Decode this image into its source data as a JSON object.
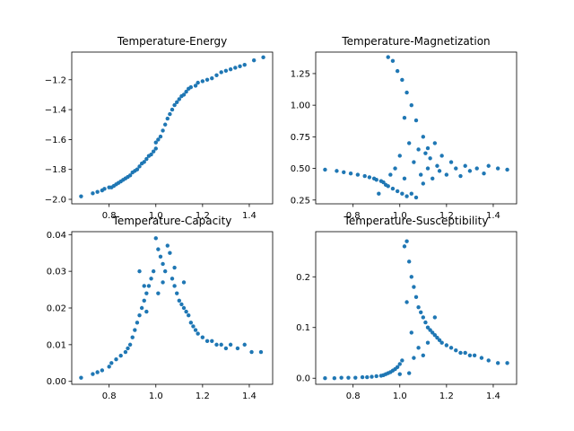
{
  "chart_data": [
    {
      "type": "scatter",
      "title": "Temperature-Energy",
      "xlim": [
        0.64,
        1.5
      ],
      "ylim": [
        -2.03,
        -1.015
      ],
      "xticks": [
        0.8,
        1.0,
        1.2,
        1.4
      ],
      "xtick_labels": [
        "0.8",
        "1.0",
        "1.2",
        "1.4"
      ],
      "yticks": [
        -2.0,
        -1.8,
        -1.6,
        -1.4,
        -1.2
      ],
      "ytick_labels": [
        "−2.0",
        "−1.8",
        "−1.6",
        "−1.4",
        "−1.2"
      ],
      "color": "#1f77b4",
      "points": [
        [
          0.68,
          -1.98
        ],
        [
          0.73,
          -1.96
        ],
        [
          0.75,
          -1.95
        ],
        [
          0.77,
          -1.94
        ],
        [
          0.78,
          -1.93
        ],
        [
          0.8,
          -1.92
        ],
        [
          0.81,
          -1.92
        ],
        [
          0.82,
          -1.91
        ],
        [
          0.83,
          -1.9
        ],
        [
          0.84,
          -1.89
        ],
        [
          0.85,
          -1.88
        ],
        [
          0.86,
          -1.87
        ],
        [
          0.87,
          -1.86
        ],
        [
          0.88,
          -1.85
        ],
        [
          0.89,
          -1.84
        ],
        [
          0.9,
          -1.82
        ],
        [
          0.91,
          -1.81
        ],
        [
          0.92,
          -1.8
        ],
        [
          0.93,
          -1.78
        ],
        [
          0.94,
          -1.76
        ],
        [
          0.95,
          -1.75
        ],
        [
          0.96,
          -1.73
        ],
        [
          0.97,
          -1.71
        ],
        [
          0.98,
          -1.7
        ],
        [
          0.99,
          -1.68
        ],
        [
          1.0,
          -1.62
        ],
        [
          1.0,
          -1.66
        ],
        [
          1.01,
          -1.6
        ],
        [
          1.02,
          -1.58
        ],
        [
          1.03,
          -1.54
        ],
        [
          1.04,
          -1.5
        ],
        [
          1.05,
          -1.46
        ],
        [
          1.06,
          -1.43
        ],
        [
          1.07,
          -1.4
        ],
        [
          1.08,
          -1.37
        ],
        [
          1.09,
          -1.35
        ],
        [
          1.1,
          -1.33
        ],
        [
          1.11,
          -1.31
        ],
        [
          1.12,
          -1.3
        ],
        [
          1.13,
          -1.28
        ],
        [
          1.14,
          -1.26
        ],
        [
          1.15,
          -1.25
        ],
        [
          1.17,
          -1.24
        ],
        [
          1.18,
          -1.22
        ],
        [
          1.2,
          -1.21
        ],
        [
          1.22,
          -1.2
        ],
        [
          1.24,
          -1.19
        ],
        [
          1.26,
          -1.17
        ],
        [
          1.28,
          -1.15
        ],
        [
          1.3,
          -1.14
        ],
        [
          1.32,
          -1.13
        ],
        [
          1.34,
          -1.12
        ],
        [
          1.36,
          -1.11
        ],
        [
          1.38,
          -1.1
        ],
        [
          1.42,
          -1.07
        ],
        [
          1.46,
          -1.05
        ]
      ]
    },
    {
      "type": "scatter",
      "title": "Temperature-Magnetization",
      "xlim": [
        0.64,
        1.5
      ],
      "ylim": [
        0.22,
        1.42
      ],
      "xticks": [
        0.8,
        1.0,
        1.2,
        1.4
      ],
      "xtick_labels": [
        "0.8",
        "1.0",
        "1.2",
        "1.4"
      ],
      "yticks": [
        0.25,
        0.5,
        0.75,
        1.0,
        1.25
      ],
      "ytick_labels": [
        "0.25",
        "0.50",
        "0.75",
        "1.00",
        "1.25"
      ],
      "color": "#1f77b4",
      "points": [
        [
          0.68,
          0.49
        ],
        [
          0.73,
          0.48
        ],
        [
          0.76,
          0.47
        ],
        [
          0.79,
          0.46
        ],
        [
          0.82,
          0.45
        ],
        [
          0.85,
          0.44
        ],
        [
          0.87,
          0.43
        ],
        [
          0.89,
          0.42
        ],
        [
          0.9,
          0.41
        ],
        [
          0.92,
          0.4
        ],
        [
          0.93,
          0.39
        ],
        [
          0.94,
          0.37
        ],
        [
          0.95,
          0.36
        ],
        [
          0.97,
          0.34
        ],
        [
          0.99,
          0.32
        ],
        [
          1.01,
          0.3
        ],
        [
          1.03,
          0.28
        ],
        [
          1.05,
          0.3
        ],
        [
          1.07,
          0.27
        ],
        [
          0.95,
          1.38
        ],
        [
          0.97,
          1.35
        ],
        [
          0.99,
          1.27
        ],
        [
          1.01,
          1.2
        ],
        [
          1.03,
          1.1
        ],
        [
          1.05,
          1.0
        ],
        [
          1.07,
          0.88
        ],
        [
          0.98,
          0.5
        ],
        [
          1.0,
          0.6
        ],
        [
          1.02,
          0.9
        ],
        [
          1.04,
          0.7
        ],
        [
          1.06,
          0.55
        ],
        [
          1.08,
          0.65
        ],
        [
          1.09,
          0.45
        ],
        [
          1.1,
          0.75
        ],
        [
          1.11,
          0.62
        ],
        [
          1.12,
          0.5
        ],
        [
          1.13,
          0.58
        ],
        [
          1.14,
          0.42
        ],
        [
          1.15,
          0.7
        ],
        [
          1.16,
          0.52
        ],
        [
          1.17,
          0.48
        ],
        [
          1.18,
          0.6
        ],
        [
          1.2,
          0.45
        ],
        [
          1.22,
          0.55
        ],
        [
          1.24,
          0.5
        ],
        [
          1.26,
          0.44
        ],
        [
          1.28,
          0.52
        ],
        [
          1.3,
          0.48
        ],
        [
          1.33,
          0.5
        ],
        [
          1.36,
          0.46
        ],
        [
          1.38,
          0.52
        ],
        [
          1.42,
          0.5
        ],
        [
          1.46,
          0.49
        ],
        [
          1.1,
          0.38
        ],
        [
          1.02,
          0.42
        ],
        [
          1.12,
          0.66
        ],
        [
          0.91,
          0.3
        ],
        [
          0.96,
          0.45
        ]
      ]
    },
    {
      "type": "scatter",
      "title": "Temperature-Capacity",
      "xlim": [
        0.64,
        1.5
      ],
      "ylim": [
        -0.0008,
        0.0408
      ],
      "xticks": [
        0.8,
        1.0,
        1.2,
        1.4
      ],
      "xtick_labels": [
        "0.8",
        "1.0",
        "1.2",
        "1.4"
      ],
      "yticks": [
        0.0,
        0.01,
        0.02,
        0.03,
        0.04
      ],
      "ytick_labels": [
        "0.00",
        "0.01",
        "0.02",
        "0.03",
        "0.04"
      ],
      "color": "#1f77b4",
      "points": [
        [
          0.68,
          0.001
        ],
        [
          0.73,
          0.002
        ],
        [
          0.75,
          0.0025
        ],
        [
          0.77,
          0.003
        ],
        [
          0.8,
          0.004
        ],
        [
          0.81,
          0.005
        ],
        [
          0.83,
          0.006
        ],
        [
          0.85,
          0.007
        ],
        [
          0.87,
          0.008
        ],
        [
          0.88,
          0.009
        ],
        [
          0.89,
          0.01
        ],
        [
          0.9,
          0.012
        ],
        [
          0.91,
          0.014
        ],
        [
          0.92,
          0.016
        ],
        [
          0.93,
          0.018
        ],
        [
          0.94,
          0.02
        ],
        [
          0.95,
          0.022
        ],
        [
          0.96,
          0.024
        ],
        [
          0.97,
          0.026
        ],
        [
          0.98,
          0.028
        ],
        [
          0.99,
          0.03
        ],
        [
          1.0,
          0.039
        ],
        [
          1.01,
          0.036
        ],
        [
          1.02,
          0.034
        ],
        [
          1.03,
          0.032
        ],
        [
          1.04,
          0.03
        ],
        [
          1.05,
          0.037
        ],
        [
          1.06,
          0.035
        ],
        [
          1.07,
          0.028
        ],
        [
          1.08,
          0.026
        ],
        [
          1.09,
          0.024
        ],
        [
          1.1,
          0.022
        ],
        [
          1.11,
          0.021
        ],
        [
          1.12,
          0.02
        ],
        [
          1.13,
          0.019
        ],
        [
          1.14,
          0.018
        ],
        [
          1.15,
          0.016
        ],
        [
          1.16,
          0.015
        ],
        [
          1.17,
          0.014
        ],
        [
          1.18,
          0.013
        ],
        [
          1.2,
          0.012
        ],
        [
          1.22,
          0.011
        ],
        [
          1.24,
          0.011
        ],
        [
          1.26,
          0.01
        ],
        [
          1.28,
          0.01
        ],
        [
          1.3,
          0.009
        ],
        [
          1.32,
          0.01
        ],
        [
          1.35,
          0.009
        ],
        [
          1.38,
          0.01
        ],
        [
          1.41,
          0.008
        ],
        [
          1.45,
          0.008
        ],
        [
          0.93,
          0.03
        ],
        [
          0.96,
          0.019
        ],
        [
          1.03,
          0.027
        ],
        [
          1.08,
          0.031
        ],
        [
          1.01,
          0.024
        ],
        [
          1.12,
          0.027
        ],
        [
          0.95,
          0.026
        ]
      ]
    },
    {
      "type": "scatter",
      "title": "Temperature-Susceptibility",
      "xlim": [
        0.64,
        1.5
      ],
      "ylim": [
        -0.012,
        0.289
      ],
      "xticks": [
        0.8,
        1.0,
        1.2,
        1.4
      ],
      "xtick_labels": [
        "0.8",
        "1.0",
        "1.2",
        "1.4"
      ],
      "yticks": [
        0.0,
        0.1,
        0.2
      ],
      "ytick_labels": [
        "0.0",
        "0.1",
        "0.2"
      ],
      "color": "#1f77b4",
      "points": [
        [
          0.68,
          0.0
        ],
        [
          0.72,
          0.0
        ],
        [
          0.75,
          0.001
        ],
        [
          0.78,
          0.001
        ],
        [
          0.81,
          0.001
        ],
        [
          0.84,
          0.002
        ],
        [
          0.86,
          0.002
        ],
        [
          0.88,
          0.003
        ],
        [
          0.9,
          0.004
        ],
        [
          0.92,
          0.005
        ],
        [
          0.93,
          0.006
        ],
        [
          0.94,
          0.008
        ],
        [
          0.95,
          0.01
        ],
        [
          0.96,
          0.012
        ],
        [
          0.97,
          0.015
        ],
        [
          0.98,
          0.018
        ],
        [
          0.99,
          0.022
        ],
        [
          1.0,
          0.028
        ],
        [
          1.01,
          0.035
        ],
        [
          1.02,
          0.26
        ],
        [
          1.03,
          0.27
        ],
        [
          1.04,
          0.23
        ],
        [
          1.05,
          0.2
        ],
        [
          1.06,
          0.18
        ],
        [
          1.07,
          0.16
        ],
        [
          1.08,
          0.14
        ],
        [
          1.09,
          0.13
        ],
        [
          1.1,
          0.12
        ],
        [
          1.11,
          0.11
        ],
        [
          1.12,
          0.1
        ],
        [
          1.13,
          0.095
        ],
        [
          1.14,
          0.09
        ],
        [
          1.15,
          0.085
        ],
        [
          1.16,
          0.08
        ],
        [
          1.17,
          0.075
        ],
        [
          1.18,
          0.07
        ],
        [
          1.2,
          0.065
        ],
        [
          1.22,
          0.06
        ],
        [
          1.24,
          0.055
        ],
        [
          1.26,
          0.05
        ],
        [
          1.28,
          0.05
        ],
        [
          1.3,
          0.045
        ],
        [
          1.32,
          0.045
        ],
        [
          1.35,
          0.04
        ],
        [
          1.38,
          0.035
        ],
        [
          1.42,
          0.03
        ],
        [
          1.46,
          0.03
        ],
        [
          1.05,
          0.09
        ],
        [
          1.08,
          0.06
        ],
        [
          1.1,
          0.045
        ],
        [
          1.03,
          0.15
        ],
        [
          1.06,
          0.04
        ],
        [
          1.12,
          0.07
        ],
        [
          1.15,
          0.12
        ],
        [
          1.0,
          0.008
        ],
        [
          1.04,
          0.01
        ]
      ]
    }
  ]
}
